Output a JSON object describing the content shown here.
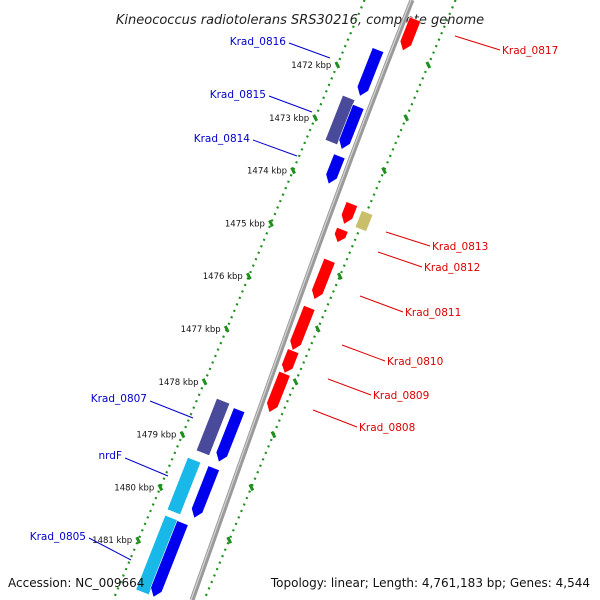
{
  "title": "Kineococcus radiotolerans SRS30216, complete genome",
  "footer": {
    "accession": "Accession: NC_009664",
    "summary": "Topology: linear; Length: 4,761,183 bp; Genes: 4,544"
  },
  "colors": {
    "backbone": "#8a8a8a",
    "tick": "#1f8f1f",
    "blue": "#0000ee",
    "navy": "#4a4a9a",
    "cyan": "#18b8e8",
    "red": "#ff0000",
    "khaki": "#c9bf6a",
    "label_blue": "#0000cc",
    "label_red": "#dd0000"
  },
  "ticks": [
    {
      "label": "1472 kbp",
      "kbp": 1472
    },
    {
      "label": "1473 kbp",
      "kbp": 1473
    },
    {
      "label": "1474 kbp",
      "kbp": 1474
    },
    {
      "label": "1475 kbp",
      "kbp": 1475
    },
    {
      "label": "1476 kbp",
      "kbp": 1476
    },
    {
      "label": "1477 kbp",
      "kbp": 1477
    },
    {
      "label": "1478 kbp",
      "kbp": 1478
    },
    {
      "label": "1479 kbp",
      "kbp": 1479
    },
    {
      "label": "1480 kbp",
      "kbp": 1480
    },
    {
      "label": "1481 kbp",
      "kbp": 1481
    }
  ],
  "genes": [
    {
      "name": "Krad_0817",
      "strand": "reverse",
      "color": "red",
      "labeled": true
    },
    {
      "name": "Krad_0816",
      "strand": "forward",
      "color": "blue",
      "labeled": true
    },
    {
      "name": "Krad_0815",
      "strand": "forward",
      "color": "navy",
      "labeled": true
    },
    {
      "name": "Krad_0814",
      "strand": "forward",
      "color": "blue",
      "labeled": true
    },
    {
      "name": "",
      "strand": "reverse",
      "color": "red",
      "labeled": false
    },
    {
      "name": "Krad_0813",
      "strand": "reverse",
      "color": "khaki",
      "labeled": true
    },
    {
      "name": "Krad_0812",
      "strand": "reverse",
      "color": "red",
      "labeled": true
    },
    {
      "name": "Krad_0811",
      "strand": "reverse",
      "color": "red",
      "labeled": true
    },
    {
      "name": "Krad_0810",
      "strand": "reverse",
      "color": "red",
      "labeled": true
    },
    {
      "name": "Krad_0809",
      "strand": "reverse",
      "color": "red",
      "labeled": true
    },
    {
      "name": "Krad_0808",
      "strand": "reverse",
      "color": "red",
      "labeled": true
    },
    {
      "name": "Krad_0807",
      "strand": "forward",
      "color": "navy",
      "labeled": true
    },
    {
      "name": "",
      "strand": "forward",
      "color": "blue",
      "labeled": false
    },
    {
      "name": "nrdF",
      "strand": "forward",
      "color": "cyan",
      "labeled": true
    },
    {
      "name": "",
      "strand": "forward",
      "color": "blue",
      "labeled": false
    },
    {
      "name": "Krad_0805",
      "strand": "forward",
      "color": "cyan",
      "labeled": true
    },
    {
      "name": "",
      "strand": "forward",
      "color": "blue",
      "labeled": false
    }
  ]
}
